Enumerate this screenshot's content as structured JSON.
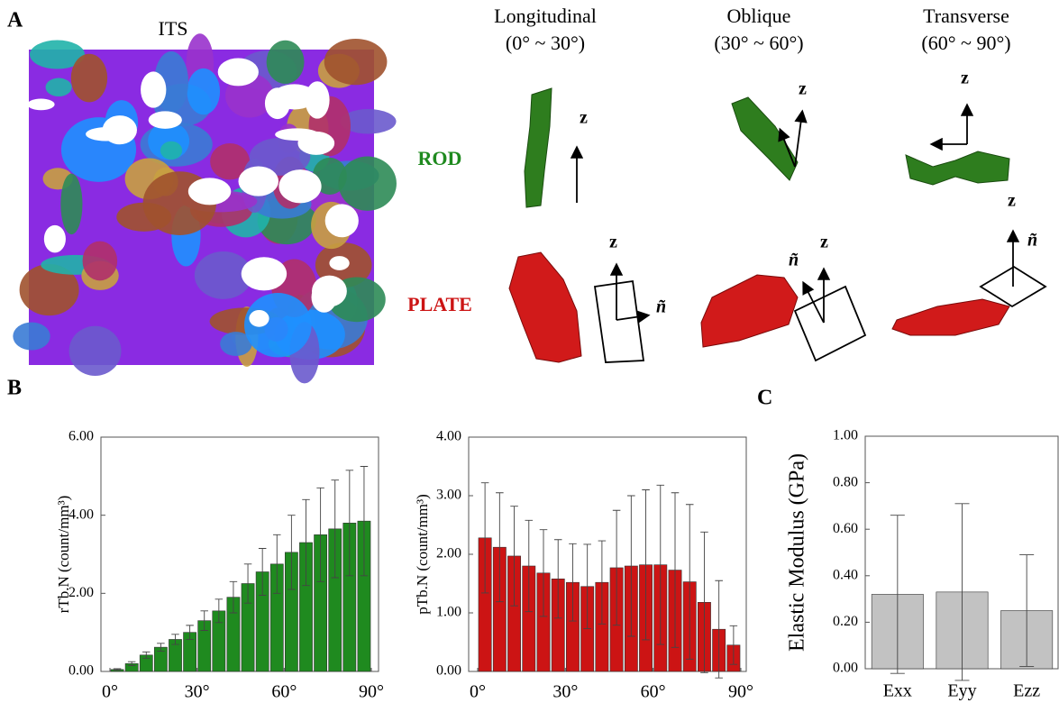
{
  "figure": {
    "panel_labels": [
      "A",
      "B",
      "C"
    ],
    "its_label": "ITS",
    "columns": [
      {
        "title": "Longitudinal",
        "range": "(0° ~ 30°)"
      },
      {
        "title": "Oblique",
        "range": "(30° ~ 60°)"
      },
      {
        "title": "Transverse",
        "range": "(60° ~ 90°)"
      }
    ],
    "rows": [
      "ROD",
      "PLATE"
    ],
    "axis_symbols": {
      "z": "z",
      "n": "ñ"
    }
  },
  "chart_data": [
    {
      "type": "bar",
      "ylabel": "rTb.N (count/mm³)",
      "color": "#1f8a1f",
      "x": [
        2.5,
        7.5,
        12.5,
        17.5,
        22.5,
        27.5,
        32.5,
        37.5,
        42.5,
        47.5,
        52.5,
        57.5,
        62.5,
        67.5,
        72.5,
        77.5,
        82.5,
        87.5
      ],
      "values": [
        0.05,
        0.2,
        0.42,
        0.62,
        0.82,
        1.0,
        1.3,
        1.55,
        1.9,
        2.25,
        2.55,
        2.75,
        3.05,
        3.3,
        3.5,
        3.65,
        3.8,
        3.85
      ],
      "errors": [
        0.02,
        0.05,
        0.08,
        0.1,
        0.13,
        0.18,
        0.25,
        0.3,
        0.4,
        0.5,
        0.6,
        0.75,
        0.95,
        1.1,
        1.2,
        1.25,
        1.35,
        1.4
      ],
      "xlim": [
        0,
        90
      ],
      "xticks": [
        {
          "value": 0,
          "label": "0°"
        },
        {
          "value": 30,
          "label": "30°"
        },
        {
          "value": 60,
          "label": "60°"
        },
        {
          "value": 90,
          "label": "90°"
        }
      ],
      "ylim": [
        0,
        6
      ],
      "yticks": [
        {
          "value": 0,
          "label": "0.00"
        },
        {
          "value": 2,
          "label": "2.00"
        },
        {
          "value": 4,
          "label": "4.00"
        },
        {
          "value": 6,
          "label": "6.00"
        }
      ]
    },
    {
      "type": "bar",
      "ylabel": "pTb.N (count/mm³)",
      "color": "#cc1414",
      "x": [
        2.5,
        7.5,
        12.5,
        17.5,
        22.5,
        27.5,
        32.5,
        37.5,
        42.5,
        47.5,
        52.5,
        57.5,
        62.5,
        67.5,
        72.5,
        77.5,
        82.5,
        87.5
      ],
      "values": [
        2.28,
        2.12,
        1.97,
        1.8,
        1.68,
        1.58,
        1.52,
        1.45,
        1.52,
        1.77,
        1.8,
        1.82,
        1.82,
        1.73,
        1.53,
        1.18,
        0.72,
        0.45
      ],
      "errors": [
        0.94,
        0.93,
        0.85,
        0.78,
        0.74,
        0.67,
        0.66,
        0.72,
        0.71,
        0.98,
        1.2,
        1.28,
        1.36,
        1.32,
        1.32,
        1.2,
        0.83,
        0.33
      ],
      "xlim": [
        0,
        90
      ],
      "xticks": [
        {
          "value": 0,
          "label": "0°"
        },
        {
          "value": 30,
          "label": "30°"
        },
        {
          "value": 60,
          "label": "60°"
        },
        {
          "value": 90,
          "label": "90°"
        }
      ],
      "ylim": [
        0,
        4
      ],
      "yticks": [
        {
          "value": 0,
          "label": "0.00"
        },
        {
          "value": 1,
          "label": "1.00"
        },
        {
          "value": 2,
          "label": "2.00"
        },
        {
          "value": 3,
          "label": "3.00"
        },
        {
          "value": 4,
          "label": "4.00"
        }
      ]
    },
    {
      "type": "bar",
      "ylabel": "Elastic Modulus (GPa)",
      "color": "#c2c2c2",
      "categories": [
        "Exx",
        "Eyy",
        "Ezz"
      ],
      "values": [
        0.32,
        0.33,
        0.25
      ],
      "errors": [
        0.34,
        0.38,
        0.24
      ],
      "ylim": [
        0,
        1
      ],
      "yticks": [
        {
          "value": 0,
          "label": "0.00"
        },
        {
          "value": 0.2,
          "label": "0.20"
        },
        {
          "value": 0.4,
          "label": "0.40"
        },
        {
          "value": 0.6,
          "label": "0.60"
        },
        {
          "value": 0.8,
          "label": "0.80"
        },
        {
          "value": 1,
          "label": "1.00"
        }
      ]
    }
  ]
}
